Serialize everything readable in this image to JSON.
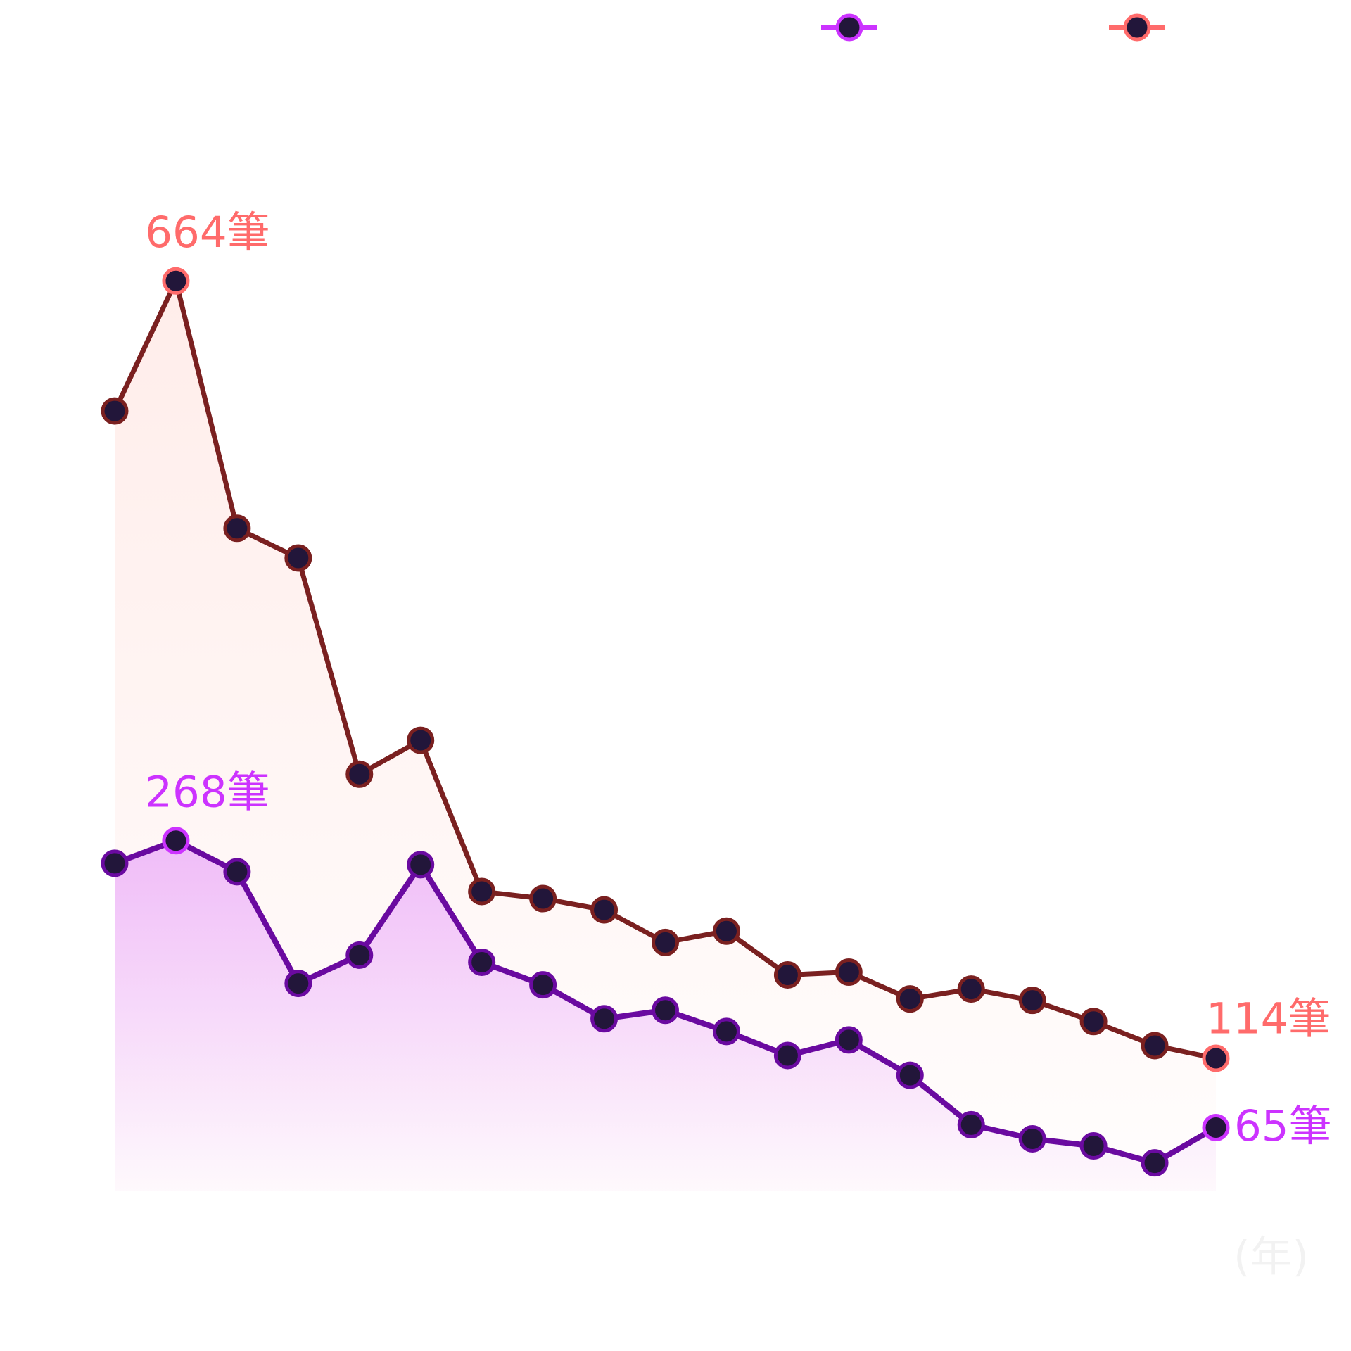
{
  "chart_data": {
    "type": "line",
    "x_label": "(年)",
    "categories": [
      null,
      null,
      null,
      null,
      null,
      null,
      null,
      null,
      null,
      null,
      null,
      null,
      null,
      null,
      null,
      null,
      null,
      null,
      null
    ],
    "ylim": [
      0,
      700
    ],
    "marker_fill": "#22163a",
    "series": [
      {
        "color": "#6a0aa0",
        "label_color": "#cc33ff",
        "fill": "#cc33ff",
        "values": [
          252,
          268,
          246,
          167,
          187,
          251,
          182,
          166,
          142,
          148,
          133,
          116,
          127,
          102,
          67,
          57,
          52,
          40,
          65
        ],
        "value_labels": [
          null,
          "268筆",
          null,
          null,
          null,
          null,
          null,
          null,
          null,
          null,
          null,
          null,
          null,
          null,
          null,
          null,
          null,
          null,
          "65筆"
        ]
      },
      {
        "color": "#7a2020",
        "label_color": "#ff6b6b",
        "fill": "#ff9a8a",
        "values": [
          572,
          664,
          489,
          468,
          315,
          339,
          232,
          227,
          219,
          196,
          204,
          173,
          175,
          156,
          163,
          155,
          140,
          123,
          114
        ],
        "value_labels": [
          null,
          "664筆",
          null,
          null,
          null,
          null,
          null,
          null,
          null,
          null,
          null,
          null,
          null,
          null,
          null,
          null,
          null,
          null,
          "114筆"
        ]
      }
    ]
  }
}
